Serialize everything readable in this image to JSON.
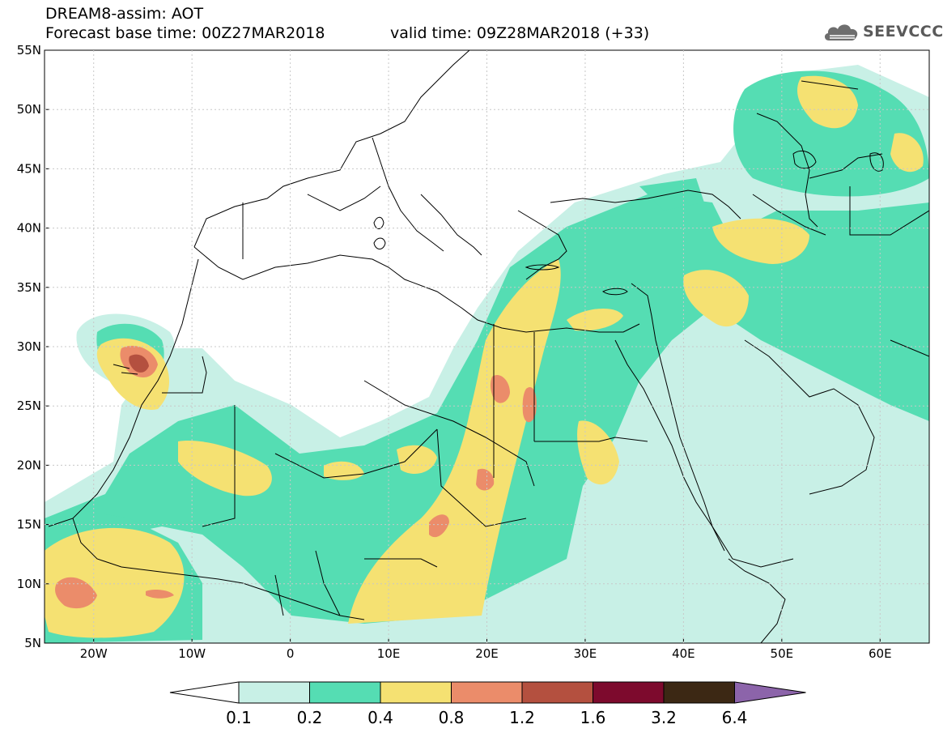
{
  "header": {
    "title": "DREAM8-assim: AOT",
    "base_time": "Forecast base time: 00Z27MAR2018",
    "valid_time": "valid time: 09Z28MAR2018 (+33)"
  },
  "logo": {
    "icon": "cloud-icon",
    "text": "SEEVCCC"
  },
  "map": {
    "lat_ticks": [
      "55N",
      "50N",
      "45N",
      "40N",
      "35N",
      "30N",
      "25N",
      "20N",
      "15N",
      "10N",
      "5N"
    ],
    "lon_ticks": [
      "20W",
      "10W",
      "0",
      "10E",
      "20E",
      "30E",
      "40E",
      "50E",
      "60E"
    ],
    "lon_range": [
      -25,
      65
    ],
    "lat_range": [
      5,
      55
    ]
  },
  "colorbar": {
    "labels": [
      "0.1",
      "0.2",
      "0.4",
      "0.8",
      "1.2",
      "1.6",
      "3.2",
      "6.4"
    ],
    "colors": [
      "#ffffff",
      "#c8f0e6",
      "#55ddb3",
      "#f5e172",
      "#eb8c6a",
      "#b4503f",
      "#7d0a2d",
      "#3c2814",
      "#8c64aa"
    ]
  }
}
